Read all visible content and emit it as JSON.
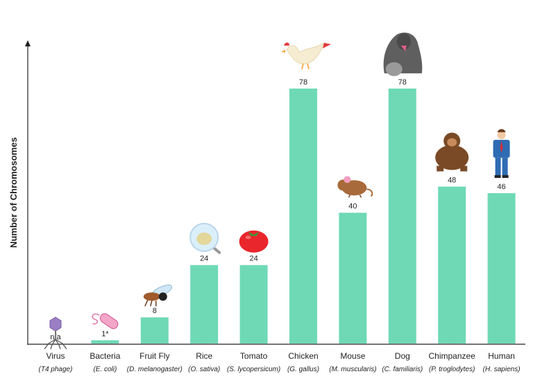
{
  "chart_data": {
    "type": "bar",
    "title": "",
    "xlabel": "",
    "ylabel": "Number of Chromosomes",
    "ylim": [
      0,
      90
    ],
    "grid": false,
    "legend": "none",
    "bar_color": "#6fd9b5",
    "categories": [
      "Virus",
      "Bacteria",
      "Fruit Fly",
      "Rice",
      "Tomato",
      "Chicken",
      "Mouse",
      "Dog",
      "Chimpanzee",
      "Human"
    ],
    "scientific_names": [
      "(T4 phage)",
      "(E. coli)",
      "(D. melanogaster)",
      "(O. sativa)",
      "(S. lycopersicum)",
      "(G. gallus)",
      "(M. muscularis)",
      "(C. familiaris)",
      "(P. troglodytes)",
      "(H. sapiens)"
    ],
    "values": [
      0,
      1,
      8,
      24,
      24,
      78,
      40,
      78,
      48,
      46
    ],
    "value_labels": [
      "n/a",
      "1*",
      "8",
      "24",
      "24",
      "78",
      "40",
      "78",
      "48",
      "46"
    ],
    "icons": [
      "virus-icon",
      "bacteria-icon",
      "fly-icon",
      "rice-icon",
      "tomato-icon",
      "chicken-icon",
      "mouse-icon",
      "dog-icon",
      "chimpanzee-icon",
      "human-icon"
    ]
  }
}
